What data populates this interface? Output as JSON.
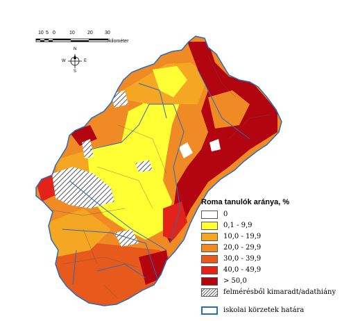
{
  "scale_bar": {
    "ticks": [
      "10",
      "5",
      "0",
      "10",
      "20",
      "30"
    ],
    "unit": "kilométer"
  },
  "compass": {
    "n": "N",
    "s": "S",
    "e": "E",
    "w": "W"
  },
  "legend": {
    "title": "Roma tanulók aránya, %",
    "classes": [
      {
        "label": "0",
        "color": "#ffffff"
      },
      {
        "label": "0,1 - 9,9",
        "color": "#ffff33"
      },
      {
        "label": "10,0 - 19,9",
        "color": "#f5a623"
      },
      {
        "label": "20,0 - 29,9",
        "color": "#f08a24"
      },
      {
        "label": "30,0 - 39,9",
        "color": "#e85a1c"
      },
      {
        "label": "40,0 - 49,9",
        "color": "#e3221a"
      },
      {
        "label": "> 50,0",
        "color": "#b3050f"
      }
    ],
    "missing_label": "felmérésből kimaradt/adathiány",
    "boundary_label": "iskolai körzetek határa",
    "boundary_color": "#2a6bb8"
  }
}
